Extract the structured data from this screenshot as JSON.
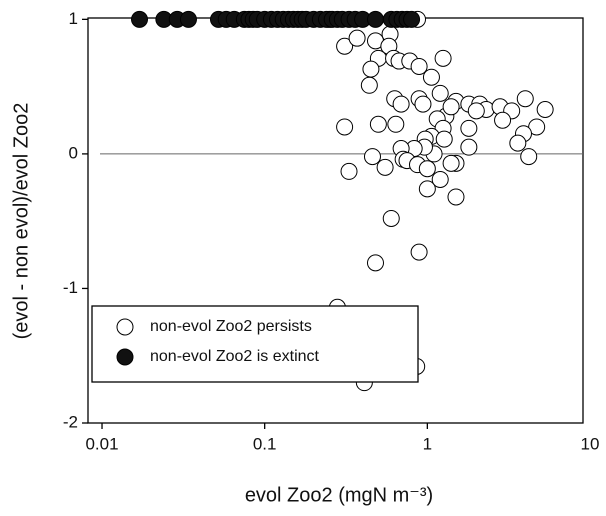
{
  "chart_data": {
    "type": "scatter",
    "xlabel": "evol Zoo2 (mgN m⁻³)",
    "ylabel": "(evol - non evol)/evol   Zoo2",
    "xscale": "log",
    "xlim": [
      0.0082,
      10
    ],
    "ylim": [
      -2,
      1.01
    ],
    "xticks": [
      0.01,
      0.1,
      1,
      10
    ],
    "yticks": [
      -2,
      -1,
      0,
      1
    ],
    "hline": 0,
    "legend": "lower left",
    "edge_color": "#000000",
    "series": [
      {
        "name": "non-evol Zoo2 persists",
        "color": "#ffffff",
        "x": [
          0.25,
          0.87,
          0.31,
          0.37,
          0.48,
          0.59,
          0.58,
          0.5,
          0.45,
          0.44,
          0.62,
          0.67,
          0.78,
          0.89,
          1.25,
          1.06,
          1.2,
          0.89,
          0.63,
          0.69,
          0.94,
          1.5,
          1.8,
          2.1,
          2.3,
          2.8,
          3.3,
          4.0,
          5.3,
          4.7,
          3.9,
          3.6,
          4.2,
          2.9,
          2.0,
          1.8,
          1.8,
          1.3,
          1.15,
          1.25,
          1.06,
          0.97,
          1.27,
          1.4,
          1.5,
          1.4,
          1.1,
          0.96,
          0.83,
          0.69,
          0.71,
          0.75,
          0.87,
          1.0,
          1.0,
          1.5,
          1.2,
          0.5,
          0.64,
          0.46,
          0.55,
          0.33,
          0.31,
          0.6,
          0.48,
          0.89,
          0.28,
          0.41,
          0.86
        ],
        "values": [
          1,
          1,
          0.8,
          0.86,
          0.84,
          0.89,
          0.8,
          0.71,
          0.63,
          0.51,
          0.71,
          0.69,
          0.69,
          0.65,
          0.71,
          0.57,
          0.45,
          0.41,
          0.41,
          0.37,
          0.37,
          0.39,
          0.37,
          0.37,
          0.33,
          0.35,
          0.32,
          0.41,
          0.33,
          0.2,
          0.15,
          0.08,
          -0.02,
          0.25,
          0.32,
          0.19,
          0.05,
          0.28,
          0.26,
          0.19,
          0.13,
          0.11,
          0.11,
          0.35,
          -0.07,
          -0.07,
          0,
          0.05,
          0.04,
          0.04,
          -0.04,
          -0.05,
          -0.08,
          -0.11,
          -0.26,
          -0.32,
          -0.19,
          0.22,
          0.22,
          -0.02,
          -0.1,
          -0.13,
          0.2,
          -0.48,
          -0.81,
          -0.73,
          -1.14,
          -1.7,
          -1.58
        ]
      },
      {
        "name": "non-evol Zoo2 is extinct",
        "color": "#111111",
        "x": [
          0.017,
          0.024,
          0.029,
          0.034,
          0.052,
          0.058,
          0.065,
          0.075,
          0.08,
          0.085,
          0.09,
          0.1,
          0.11,
          0.12,
          0.13,
          0.14,
          0.15,
          0.16,
          0.17,
          0.18,
          0.2,
          0.22,
          0.24,
          0.26,
          0.28,
          0.3,
          0.33,
          0.36,
          0.4,
          0.48,
          0.6,
          0.65,
          0.7,
          0.75,
          0.8
        ],
        "values": [
          1,
          1,
          1,
          1,
          1,
          1,
          1,
          1,
          1,
          1,
          1,
          1,
          1,
          1,
          1,
          1,
          1,
          1,
          1,
          1,
          1,
          1,
          1,
          1,
          1,
          1,
          1,
          1,
          1,
          1,
          1,
          1,
          1,
          1,
          1
        ]
      }
    ]
  }
}
